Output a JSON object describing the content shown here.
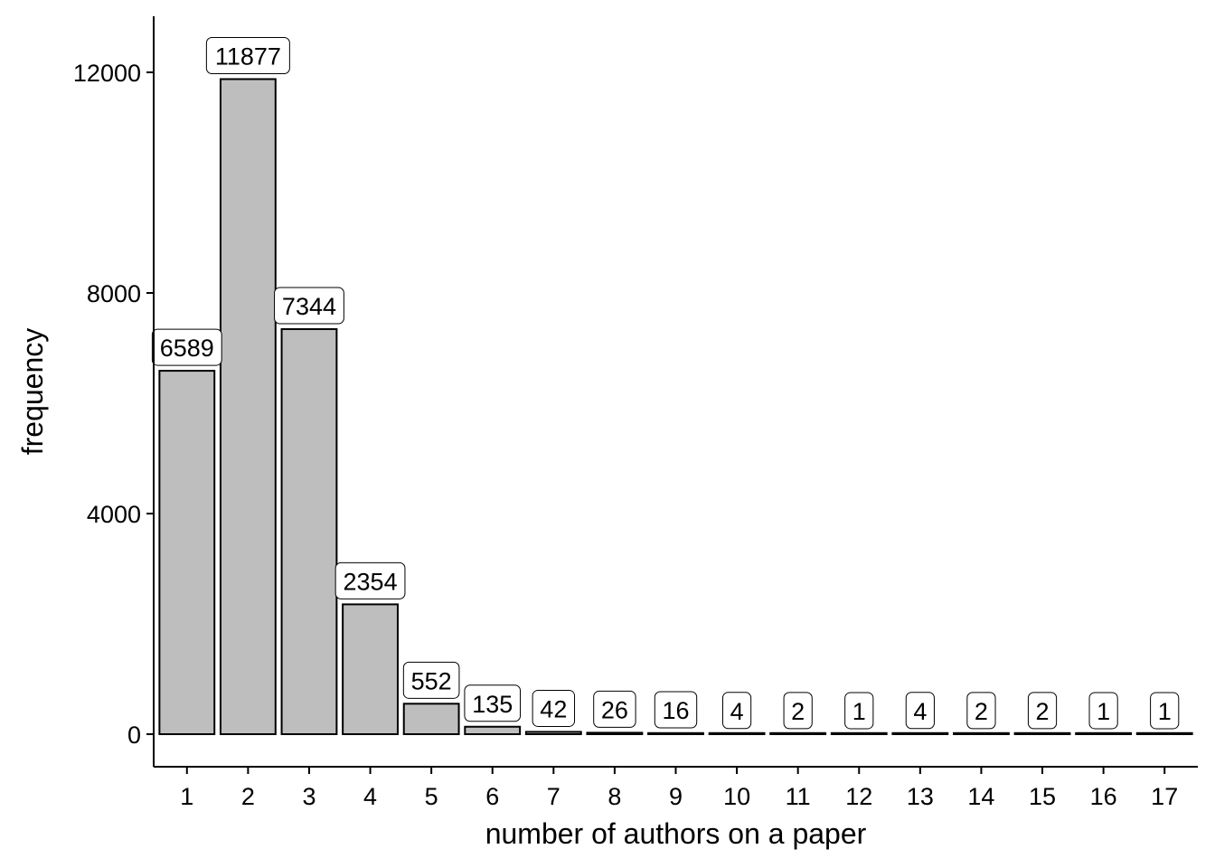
{
  "chart_data": {
    "type": "bar",
    "title": "",
    "xlabel": "number of authors on a paper",
    "ylabel": "frequency",
    "categories": [
      "1",
      "2",
      "3",
      "4",
      "5",
      "6",
      "7",
      "8",
      "9",
      "10",
      "11",
      "12",
      "13",
      "14",
      "15",
      "16",
      "17"
    ],
    "values": [
      6589,
      11877,
      7344,
      2354,
      552,
      135,
      42,
      26,
      16,
      4,
      2,
      1,
      4,
      2,
      2,
      1,
      1
    ],
    "ylim": [
      -600,
      13000
    ],
    "yticks": [
      0,
      4000,
      8000,
      12000
    ],
    "ytick_labels": [
      "0",
      "4000",
      "8000",
      "12000"
    ],
    "grid": false,
    "legend": "none",
    "bar_fill": "#bebebe",
    "bar_stroke": "#000000"
  }
}
